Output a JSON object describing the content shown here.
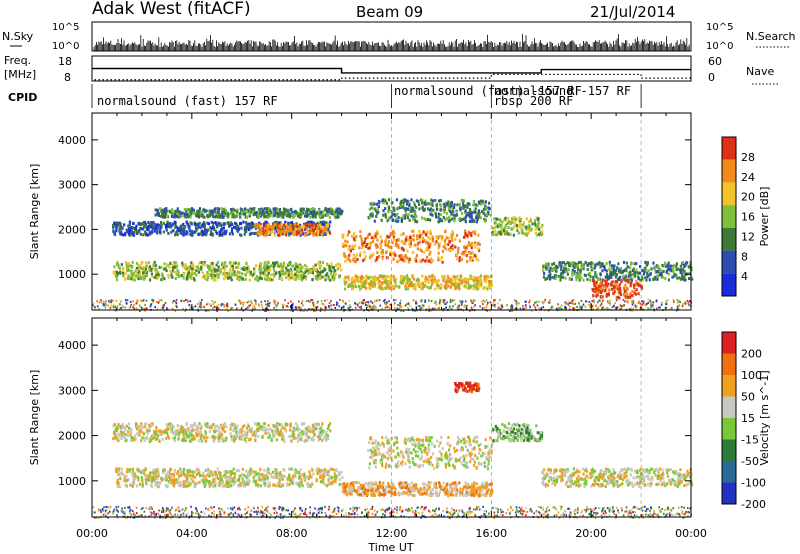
{
  "header": {
    "station": "Adak West (fitACF)",
    "beam": "Beam 09",
    "date": "21/Jul/2014"
  },
  "top_panels": {
    "nsky_label": "N.Sky",
    "nsky_ticks": [
      "10^5",
      "10^0"
    ],
    "nsearch_label": "N.Search",
    "nsearch_ticks": [
      "10^5",
      "10^0"
    ],
    "freq_label_1": "Freq.",
    "freq_label_2": "[MHz]",
    "freq_ticks": [
      "18",
      "8"
    ],
    "nave_label": "Nave",
    "nave_ticks": [
      "60",
      "0"
    ],
    "cpid_label": "CPID",
    "cpid_segments": [
      {
        "start_hour": 0.2,
        "text": "normalsound (fast) 157 RF"
      },
      {
        "start_hour": 12.1,
        "text": "normalsound (fast) -157 RF"
      },
      {
        "start_hour": 16.1,
        "text": "rbsp 200 RF"
      },
      {
        "start_hour": 16.1,
        "text": "normalsound -157 RF"
      }
    ],
    "cpid_boundaries_hours": [
      12.0,
      16.0,
      22.0
    ]
  },
  "chart_data": [
    {
      "type": "heatmap",
      "panel": "power",
      "ylabel": "Slant Range [km]",
      "xlim_hours": [
        0,
        24
      ],
      "ylim": [
        200,
        4600
      ],
      "yticks": [
        1000,
        2000,
        3000,
        4000
      ],
      "colorbar_label": "Power [dB]",
      "colorbar_ticks": [
        "28",
        "24",
        "20",
        "16",
        "12",
        "8",
        "4"
      ],
      "colors": [
        "#1a2bd9",
        "#2a4fb0",
        "#3c7a3a",
        "#7fbf3a",
        "#f2c22a",
        "#f08a1a",
        "#e03018"
      ],
      "scatter_bands": [
        {
          "from": 0.8,
          "to": 9.5,
          "r0": 1900,
          "r1": 2200,
          "level": 1
        },
        {
          "from": 2.5,
          "to": 10.0,
          "r0": 2300,
          "r1": 2500,
          "level": 2
        },
        {
          "from": 0.8,
          "to": 10.0,
          "r0": 900,
          "r1": 1300,
          "level": 3
        },
        {
          "from": 6.5,
          "to": 9.5,
          "r0": 1900,
          "r1": 2150,
          "level": 5
        },
        {
          "from": 10.0,
          "to": 15.5,
          "r0": 1300,
          "r1": 2000,
          "level": 5
        },
        {
          "from": 10.0,
          "to": 16.0,
          "r0": 700,
          "r1": 1000,
          "level": 4
        },
        {
          "from": 11.0,
          "to": 16.0,
          "r0": 2200,
          "r1": 2700,
          "level": 2
        },
        {
          "from": 16.0,
          "to": 18.0,
          "r0": 1900,
          "r1": 2300,
          "level": 3
        },
        {
          "from": 18.0,
          "to": 24.0,
          "r0": 900,
          "r1": 1300,
          "level": 2
        },
        {
          "from": 20.0,
          "to": 22.0,
          "r0": 500,
          "r1": 900,
          "level": 6
        }
      ]
    },
    {
      "type": "heatmap",
      "panel": "velocity",
      "xlabel": "Time UT",
      "ylabel": "Slant Range [km]",
      "xlim_hours": [
        0,
        24
      ],
      "ylim": [
        200,
        4600
      ],
      "yticks": [
        1000,
        2000,
        3000,
        4000
      ],
      "xticks": [
        "00:00",
        "04:00",
        "08:00",
        "12:00",
        "16:00",
        "20:00",
        "00:00"
      ],
      "colorbar_label": "Velocity [m s^-1]",
      "colorbar_ticks": [
        "200",
        "100",
        "50",
        "15",
        "-15",
        "-50",
        "-100",
        "-200"
      ],
      "colors": [
        "#2430c0",
        "#2a6a9a",
        "#2d7a3a",
        "#7ac83a",
        "#c8c8c0",
        "#f0a020",
        "#f07010",
        "#e02020"
      ],
      "scatter_bands": [
        {
          "from": 0.8,
          "to": 9.5,
          "r0": 1900,
          "r1": 2300,
          "level": 4
        },
        {
          "from": 0.8,
          "to": 10.0,
          "r0": 900,
          "r1": 1300,
          "level": 4
        },
        {
          "from": 10.0,
          "to": 16.0,
          "r0": 700,
          "r1": 1000,
          "level": 5
        },
        {
          "from": 11.0,
          "to": 16.0,
          "r0": 1300,
          "r1": 2000,
          "level": 4
        },
        {
          "from": 14.5,
          "to": 15.5,
          "r0": 3000,
          "r1": 3200,
          "level": 7
        },
        {
          "from": 16.0,
          "to": 18.0,
          "r0": 1900,
          "r1": 2300,
          "level": 3
        },
        {
          "from": 18.0,
          "to": 24.0,
          "r0": 900,
          "r1": 1300,
          "level": 4
        }
      ]
    }
  ]
}
